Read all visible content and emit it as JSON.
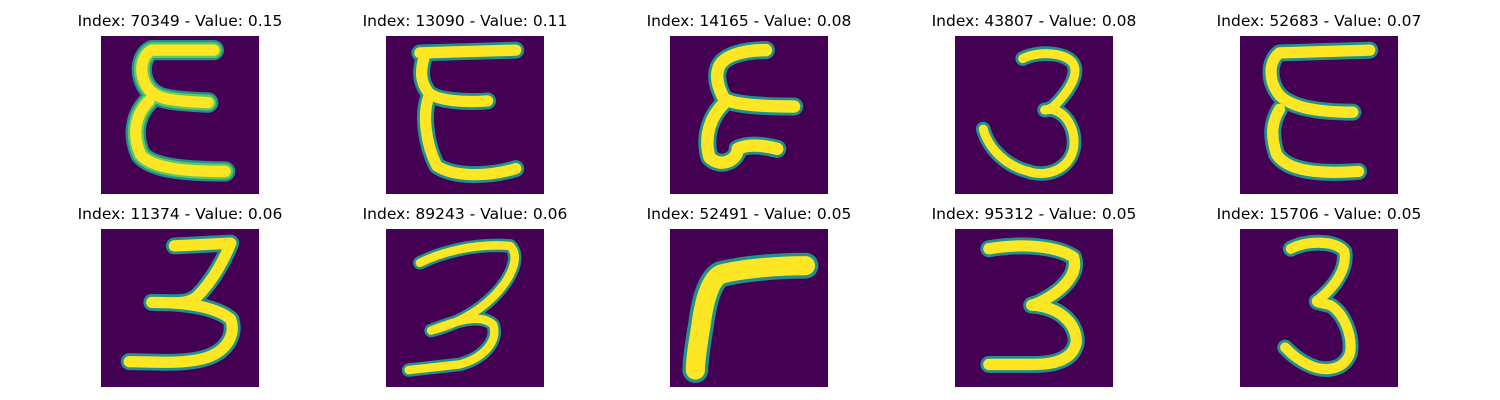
{
  "colors": {
    "background": "#440154",
    "stroke_core": "#fde725",
    "stroke_mid": "#5ec962",
    "stroke_edge": "#22908c"
  },
  "panels": [
    {
      "title": "Index: 70349 - Value: 0.15",
      "glyph": "rotated-3"
    },
    {
      "title": "Index: 13090 - Value: 0.11",
      "glyph": "rotated-3"
    },
    {
      "title": "Index: 14165 - Value: 0.08",
      "glyph": "rotated-3"
    },
    {
      "title": "Index: 43807 - Value: 0.08",
      "glyph": "digit-3"
    },
    {
      "title": "Index: 52683 - Value: 0.07",
      "glyph": "rotated-3"
    },
    {
      "title": "Index: 11374 - Value: 0.06",
      "glyph": "digit-3"
    },
    {
      "title": "Index: 89243 - Value: 0.06",
      "glyph": "digit-3"
    },
    {
      "title": "Index: 52491 - Value: 0.05",
      "glyph": "digit-7-like"
    },
    {
      "title": "Index: 95312 - Value: 0.05",
      "glyph": "digit-3"
    },
    {
      "title": "Index: 15706 - Value: 0.05",
      "glyph": "digit-3"
    }
  ]
}
